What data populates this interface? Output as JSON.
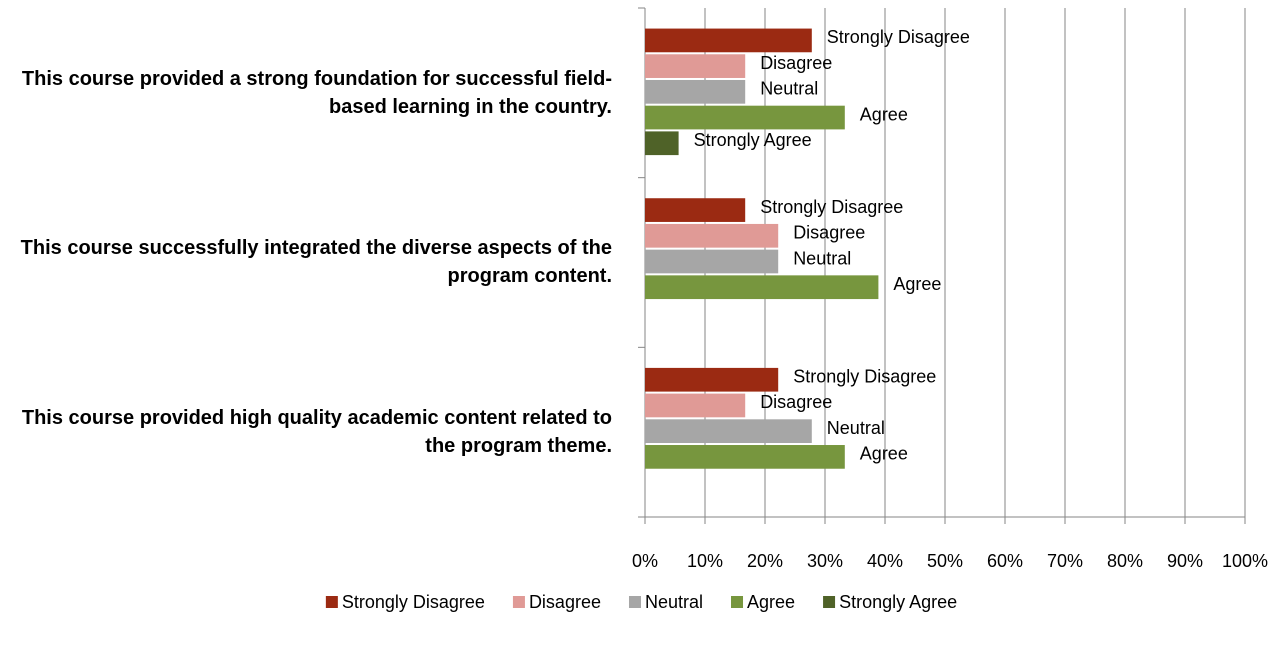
{
  "chart_data": {
    "type": "bar",
    "orientation": "horizontal",
    "categories": [
      "This course provided a strong foundation for successful field-based learning in the country.",
      "This course successfully integrated the diverse aspects of the program content.",
      "This course provided high quality academic content related to the program theme."
    ],
    "series": [
      {
        "name": "Strongly Disagree",
        "color": "#9b2a12",
        "values": [
          27.8,
          16.7,
          22.2
        ]
      },
      {
        "name": "Disagree",
        "color": "#e09a96",
        "values": [
          16.7,
          22.2,
          16.7
        ]
      },
      {
        "name": "Neutral",
        "color": "#a6a6a6",
        "values": [
          16.7,
          22.2,
          27.8
        ]
      },
      {
        "name": "Agree",
        "color": "#77963e",
        "values": [
          33.3,
          38.9,
          33.3
        ]
      },
      {
        "name": "Strongly Agree",
        "color": "#4f6228",
        "values": [
          5.6,
          null,
          null
        ]
      }
    ],
    "xlim": [
      0,
      100
    ],
    "xticks": [
      {
        "value": 0,
        "label": "0%"
      },
      {
        "value": 10,
        "label": "10%"
      },
      {
        "value": 20,
        "label": "20%"
      },
      {
        "value": 30,
        "label": "30%"
      },
      {
        "value": 40,
        "label": "40%"
      },
      {
        "value": 50,
        "label": "50%"
      },
      {
        "value": 60,
        "label": "60%"
      },
      {
        "value": 70,
        "label": "70%"
      },
      {
        "value": 80,
        "label": "80%"
      },
      {
        "value": 90,
        "label": "90%"
      },
      {
        "value": 100,
        "label": "100%"
      }
    ],
    "grid": true,
    "data_labels": "series_name",
    "legend": "bottom"
  }
}
